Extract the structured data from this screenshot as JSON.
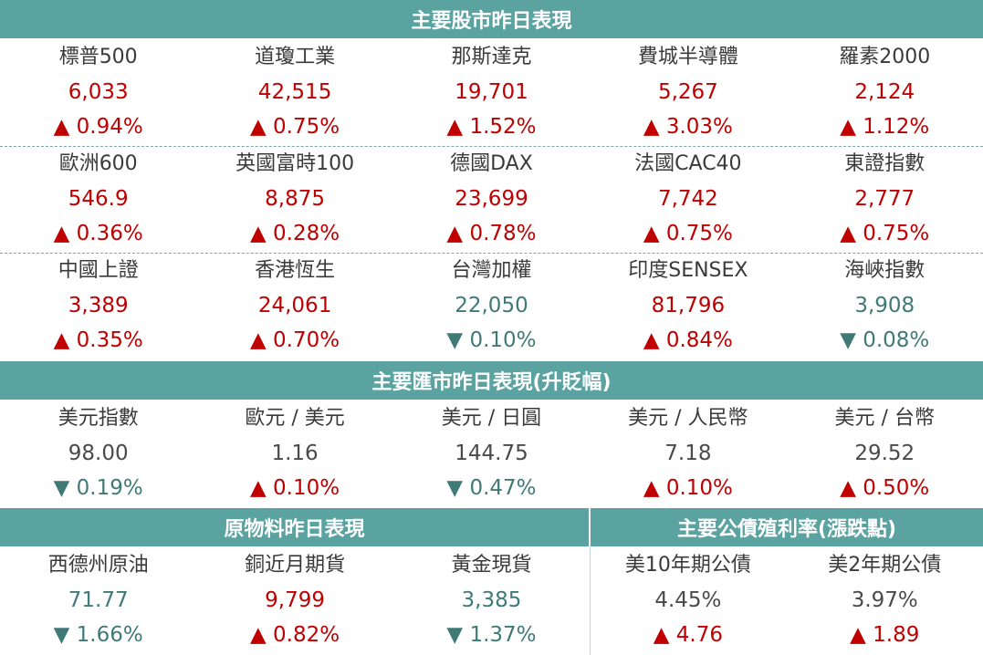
{
  "stocks": {
    "title": "主要股市昨日表現",
    "rows": [
      [
        {
          "name": "標普500",
          "value": "6,033",
          "arrow": "▲",
          "change": "0.94%",
          "dir": "up"
        },
        {
          "name": "道瓊工業",
          "value": "42,515",
          "arrow": "▲",
          "change": "0.75%",
          "dir": "up"
        },
        {
          "name": "那斯達克",
          "value": "19,701",
          "arrow": "▲",
          "change": "1.52%",
          "dir": "up"
        },
        {
          "name": "費城半導體",
          "value": "5,267",
          "arrow": "▲",
          "change": "3.03%",
          "dir": "up"
        },
        {
          "name": "羅素2000",
          "value": "2,124",
          "arrow": "▲",
          "change": "1.12%",
          "dir": "up"
        }
      ],
      [
        {
          "name": "歐洲600",
          "value": "546.9",
          "arrow": "▲",
          "change": "0.36%",
          "dir": "up"
        },
        {
          "name": "英國富時100",
          "value": "8,875",
          "arrow": "▲",
          "change": "0.28%",
          "dir": "up"
        },
        {
          "name": "德國DAX",
          "value": "23,699",
          "arrow": "▲",
          "change": "0.78%",
          "dir": "up"
        },
        {
          "name": "法國CAC40",
          "value": "7,742",
          "arrow": "▲",
          "change": "0.75%",
          "dir": "up"
        },
        {
          "name": "東證指數",
          "value": "2,777",
          "arrow": "▲",
          "change": "0.75%",
          "dir": "up"
        }
      ],
      [
        {
          "name": "中國上證",
          "value": "3,389",
          "arrow": "▲",
          "change": "0.35%",
          "dir": "up"
        },
        {
          "name": "香港恆生",
          "value": "24,061",
          "arrow": "▲",
          "change": "0.70%",
          "dir": "up"
        },
        {
          "name": "台灣加權",
          "value": "22,050",
          "arrow": "▼",
          "change": "0.10%",
          "dir": "down"
        },
        {
          "name": "印度SENSEX",
          "value": "81,796",
          "arrow": "▲",
          "change": "0.84%",
          "dir": "up"
        },
        {
          "name": "海峽指數",
          "value": "3,908",
          "arrow": "▼",
          "change": "0.08%",
          "dir": "down"
        }
      ]
    ]
  },
  "fx": {
    "title": "主要匯市昨日表現(升貶幅)",
    "items": [
      {
        "name": "美元指數",
        "value": "98.00",
        "arrow": "▼",
        "change": "0.19%",
        "dir": "down"
      },
      {
        "name": "歐元 / 美元",
        "value": "1.16",
        "arrow": "▲",
        "change": "0.10%",
        "dir": "up"
      },
      {
        "name": "美元 / 日圓",
        "value": "144.75",
        "arrow": "▼",
        "change": "0.47%",
        "dir": "down"
      },
      {
        "name": "美元 / 人民幣",
        "value": "7.18",
        "arrow": "▲",
        "change": "0.10%",
        "dir": "up"
      },
      {
        "name": "美元 / 台幣",
        "value": "29.52",
        "arrow": "▲",
        "change": "0.50%",
        "dir": "up"
      }
    ]
  },
  "commodities": {
    "title": "原物料昨日表現",
    "items": [
      {
        "name": "西德州原油",
        "value": "71.77",
        "arrow": "▼",
        "change": "1.66%",
        "dir": "down"
      },
      {
        "name": "銅近月期貨",
        "value": "9,799",
        "arrow": "▲",
        "change": "0.82%",
        "dir": "up"
      },
      {
        "name": "黃金現貨",
        "value": "3,385",
        "arrow": "▼",
        "change": "1.37%",
        "dir": "down"
      }
    ]
  },
  "bonds": {
    "title": "主要公債殖利率(漲跌點)",
    "items": [
      {
        "name": "美10年期公債",
        "value": "4.45%",
        "arrow": "▲",
        "change": "4.76",
        "dir": "up"
      },
      {
        "name": "美2年期公債",
        "value": "3.97%",
        "arrow": "▲",
        "change": "1.89",
        "dir": "up"
      }
    ]
  },
  "colors": {
    "header_bg": "#5aa3a0",
    "up": "#c00000",
    "down": "#3f7a77",
    "neutral": "#4a4a4a"
  }
}
